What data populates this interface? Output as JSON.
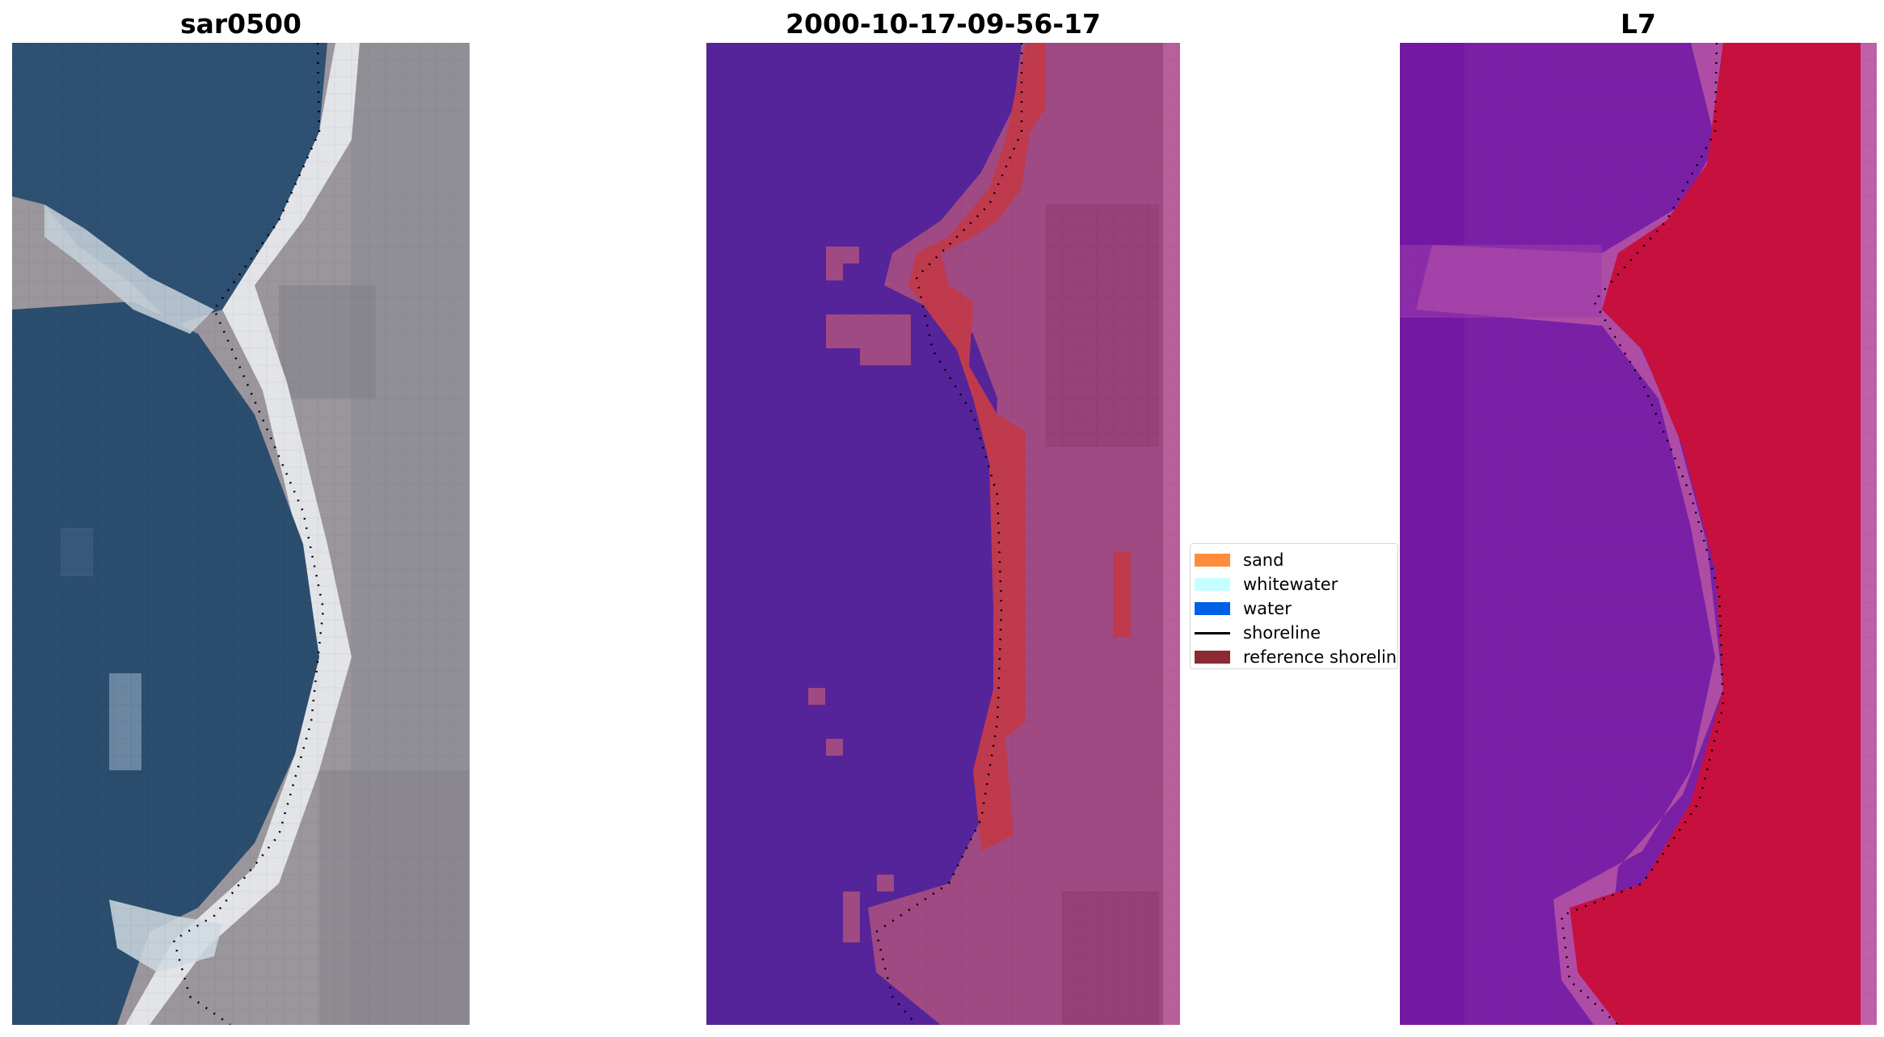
{
  "panels": [
    {
      "title": "sar0500"
    },
    {
      "title": "2000-10-17-09-56-17"
    },
    {
      "title": "L7"
    }
  ],
  "legend": {
    "items": [
      {
        "label": "sand",
        "kind": "patch",
        "color": "#ff8c3a"
      },
      {
        "label": "whitewater",
        "kind": "patch",
        "color": "#c6ffff"
      },
      {
        "label": "water",
        "kind": "patch",
        "color": "#0060e8"
      },
      {
        "label": "shoreline",
        "kind": "line",
        "color": "#000000"
      },
      {
        "label": "reference shoreline",
        "kind": "patch",
        "color": "#8b2a32"
      }
    ]
  },
  "colors": {
    "rgb_water": "#2d4f70",
    "rgb_land": "#9c969c",
    "rgb_whitewater": "#e4ecf2",
    "class_water": "#54249a",
    "class_land": "#a04a86",
    "class_edge": "#c03a50",
    "mndwi_water": "#7a1ea8",
    "mndwi_land": "#c8103e",
    "mndwi_edge": "#c060a8"
  }
}
